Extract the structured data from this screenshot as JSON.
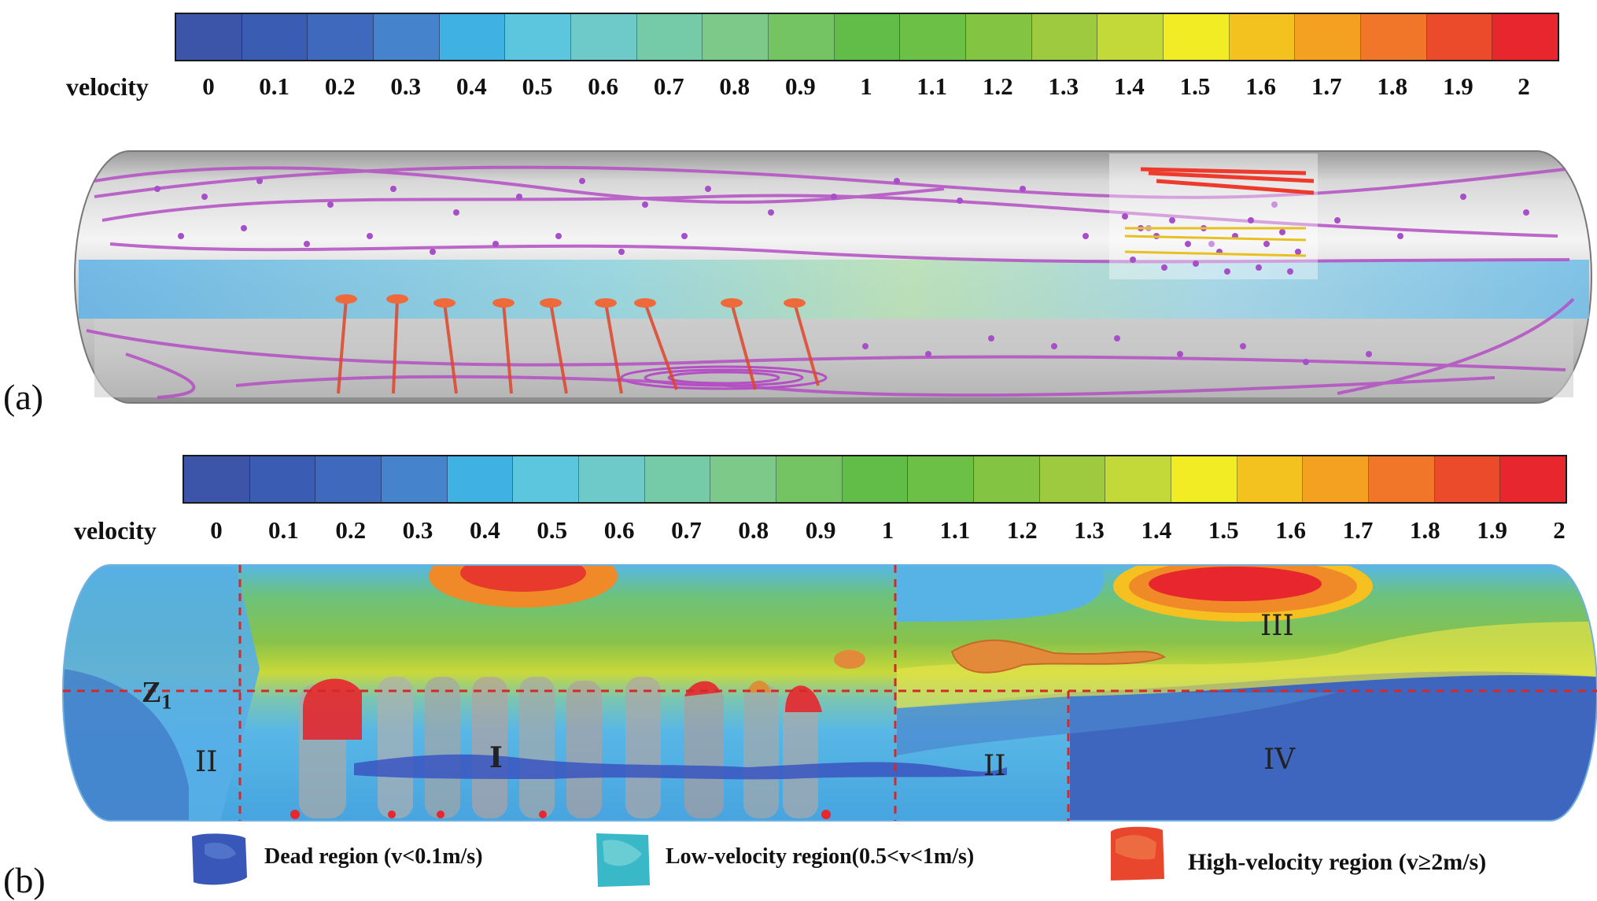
{
  "panel_a": {
    "label": "(a)",
    "colorbar": {
      "title": "velocity",
      "ticks": [
        "0",
        "0.1",
        "0.2",
        "0.3",
        "0.4",
        "0.5",
        "0.6",
        "0.7",
        "0.8",
        "0.9",
        "1",
        "1.1",
        "1.2",
        "1.3",
        "1.4",
        "1.5",
        "1.6",
        "1.7",
        "1.8",
        "1.9",
        "2"
      ],
      "colors": [
        "#3c55a8",
        "#3a5cb3",
        "#3f69bd",
        "#4583cc",
        "#3fb1e2",
        "#5cc6df",
        "#6dcac8",
        "#75caa8",
        "#7dc98a",
        "#74c463",
        "#62bd48",
        "#6cc046",
        "#84c443",
        "#9dca3f",
        "#c3d93a",
        "#f2ec24",
        "#f4c21f",
        "#f4a020",
        "#f1762a",
        "#ec4b2b",
        "#e8262d"
      ]
    },
    "image_description": "tank"
  },
  "panel_b": {
    "label": "(b)",
    "colorbar": {
      "title": "velocity",
      "ticks": [
        "0",
        "0.1",
        "0.2",
        "0.3",
        "0.4",
        "0.5",
        "0.6",
        "0.7",
        "0.8",
        "0.9",
        "1",
        "1.1",
        "1.2",
        "1.3",
        "1.4",
        "1.5",
        "1.6",
        "1.7",
        "1.8",
        "1.9",
        "2"
      ],
      "colors": [
        "#3c55a8",
        "#3a5cb3",
        "#3f69bd",
        "#4583cc",
        "#3fb1e2",
        "#5cc6df",
        "#6dcac8",
        "#75caa8",
        "#7dc98a",
        "#74c463",
        "#62bd48",
        "#6cc046",
        "#84c443",
        "#9dca3f",
        "#c3d93a",
        "#f2ec24",
        "#f4c21f",
        "#f4a020",
        "#f1762a",
        "#ec4b2b",
        "#e8262d"
      ]
    },
    "regions": {
      "z1": "Z",
      "z1_sub": "1",
      "region_I": "I",
      "region_II_left": "II",
      "region_II_right": "II",
      "region_III": "III",
      "region_IV": "IV"
    },
    "legend": {
      "dead": "Dead region (v<0.1m/s)",
      "low": "Low-velocity region(0.5<v<1m/s)",
      "high": "High-velocity region (v≥2m/s)"
    }
  }
}
